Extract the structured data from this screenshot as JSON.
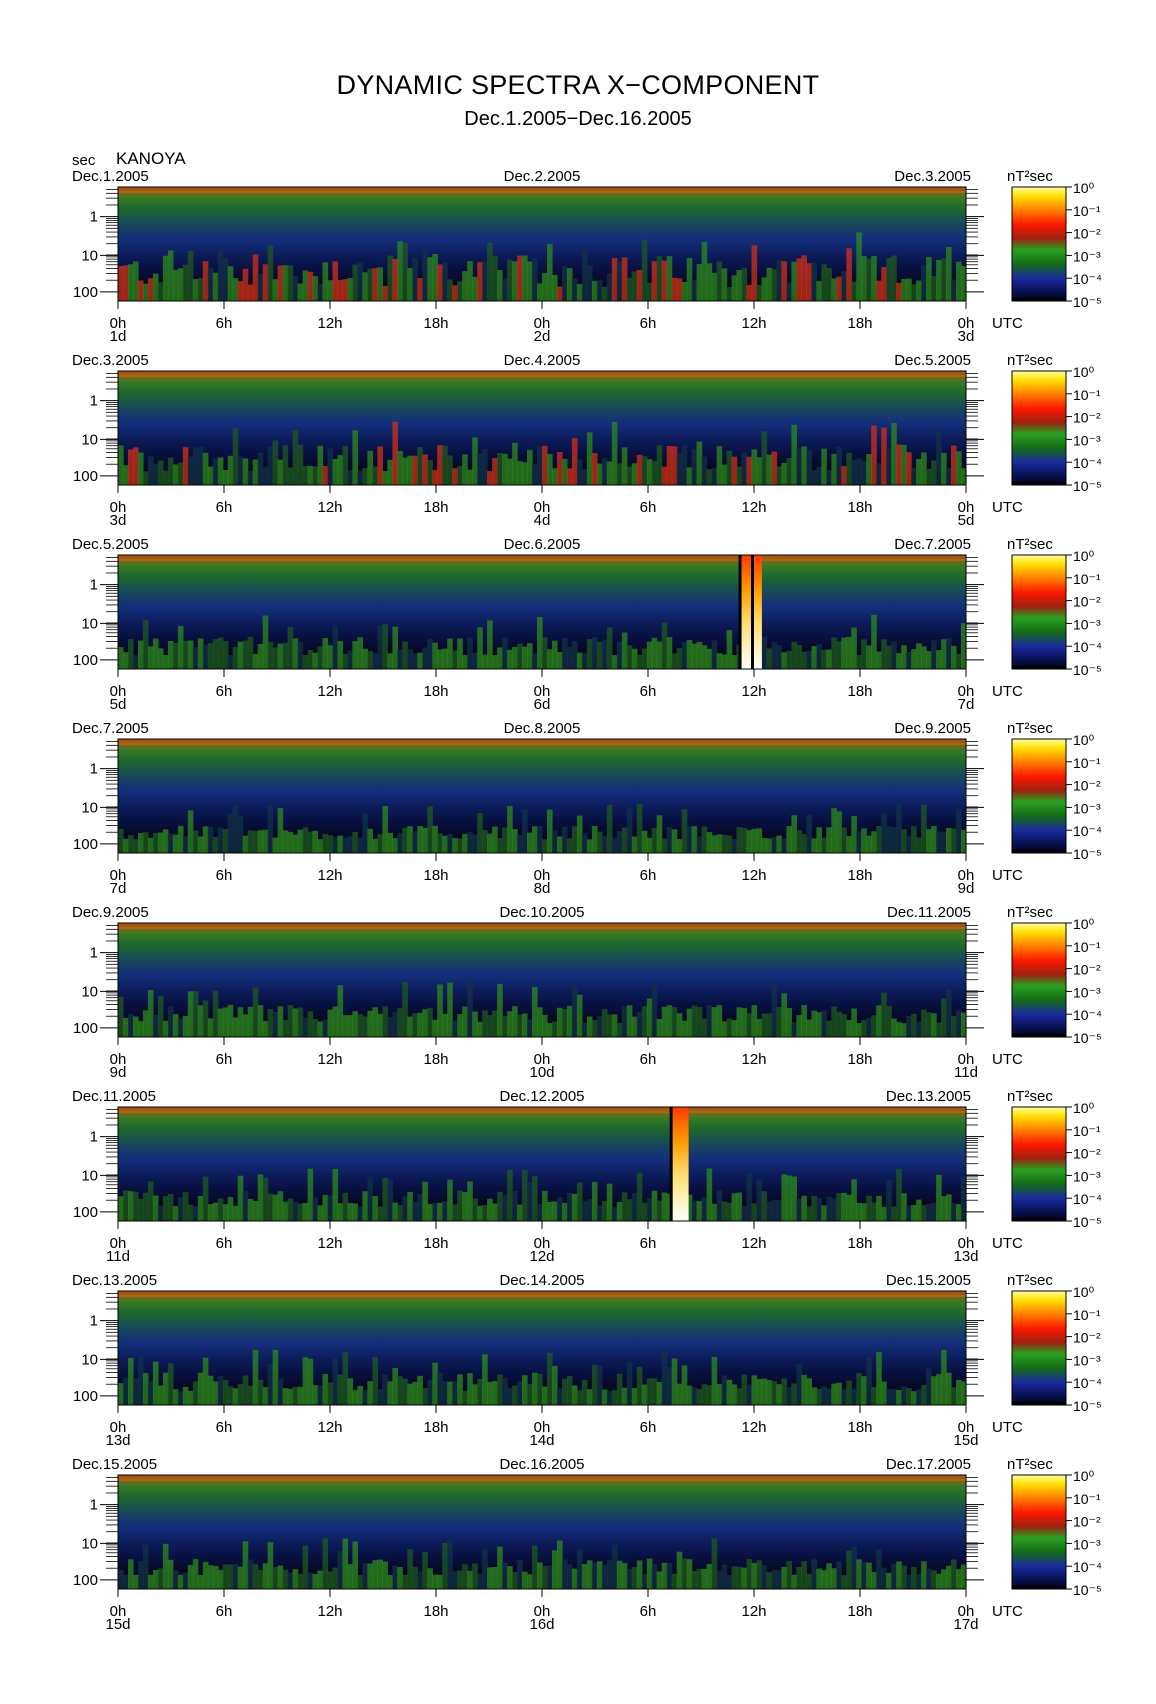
{
  "header": {
    "title": "DYNAMIC SPECTRA X−COMPONENT",
    "subtitle": "Dec.1.2005−Dec.16.2005",
    "y_unit": "sec",
    "station": "KANOYA"
  },
  "chart_data": {
    "type": "heatmap",
    "y_axis": {
      "label": "sec",
      "scale": "log",
      "tick_labels": [
        "1",
        "10",
        "100"
      ]
    },
    "x_axis": {
      "tick_labels": [
        "0h",
        "6h",
        "12h",
        "18h",
        "0h",
        "6h",
        "12h",
        "18h",
        "0h"
      ],
      "unit_label": "UTC"
    },
    "colorbar": {
      "unit": "nT²sec",
      "scale": "log",
      "range": [
        1e-05,
        1
      ],
      "tick_labels": [
        "10⁰",
        "10⁻¹",
        "10⁻²",
        "10⁻³",
        "10⁻⁴",
        "10⁻⁵"
      ],
      "colors": [
        "#000000",
        "#0a1040",
        "#1a2ca0",
        "#146414",
        "#2a9a18",
        "#b03010",
        "#ff1a00",
        "#ff7a00",
        "#ffd000",
        "#ffff80"
      ]
    },
    "panels": [
      {
        "date_left": "Dec.1.2005",
        "date_mid": "Dec.2.2005",
        "date_right": "Dec.3.2005",
        "day_labels": [
          "1d",
          "2d",
          "3d"
        ],
        "bursts": []
      },
      {
        "date_left": "Dec.3.2005",
        "date_mid": "Dec.4.2005",
        "date_right": "Dec.5.2005",
        "day_labels": [
          "3d",
          "4d",
          "5d"
        ],
        "bursts": []
      },
      {
        "date_left": "Dec.5.2005",
        "date_mid": "Dec.6.2005",
        "date_right": "Dec.7.2005",
        "day_labels": [
          "5d",
          "6d",
          "7d"
        ],
        "bursts": [
          {
            "hour": 35.3,
            "width_h": 0.6
          },
          {
            "hour": 36.0,
            "width_h": 0.45
          }
        ]
      },
      {
        "date_left": "Dec.7.2005",
        "date_mid": "Dec.8.2005",
        "date_right": "Dec.9.2005",
        "day_labels": [
          "7d",
          "8d",
          "9d"
        ],
        "bursts": []
      },
      {
        "date_left": "Dec.9.2005",
        "date_mid": "Dec.10.2005",
        "date_right": "Dec.11.2005",
        "day_labels": [
          "9d",
          "10d",
          "11d"
        ],
        "bursts": []
      },
      {
        "date_left": "Dec.11.2005",
        "date_mid": "Dec.12.2005",
        "date_right": "Dec.13.2005",
        "day_labels": [
          "11d",
          "12d",
          "13d"
        ],
        "bursts": [
          {
            "hour": 31.4,
            "width_h": 0.9
          }
        ]
      },
      {
        "date_left": "Dec.13.2005",
        "date_mid": "Dec.14.2005",
        "date_right": "Dec.15.2005",
        "day_labels": [
          "13d",
          "14d",
          "15d"
        ],
        "bursts": []
      },
      {
        "date_left": "Dec.15.2005",
        "date_mid": "Dec.16.2005",
        "date_right": "Dec.17.2005",
        "day_labels": [
          "15d",
          "16d",
          "17d"
        ],
        "bursts": []
      }
    ]
  }
}
